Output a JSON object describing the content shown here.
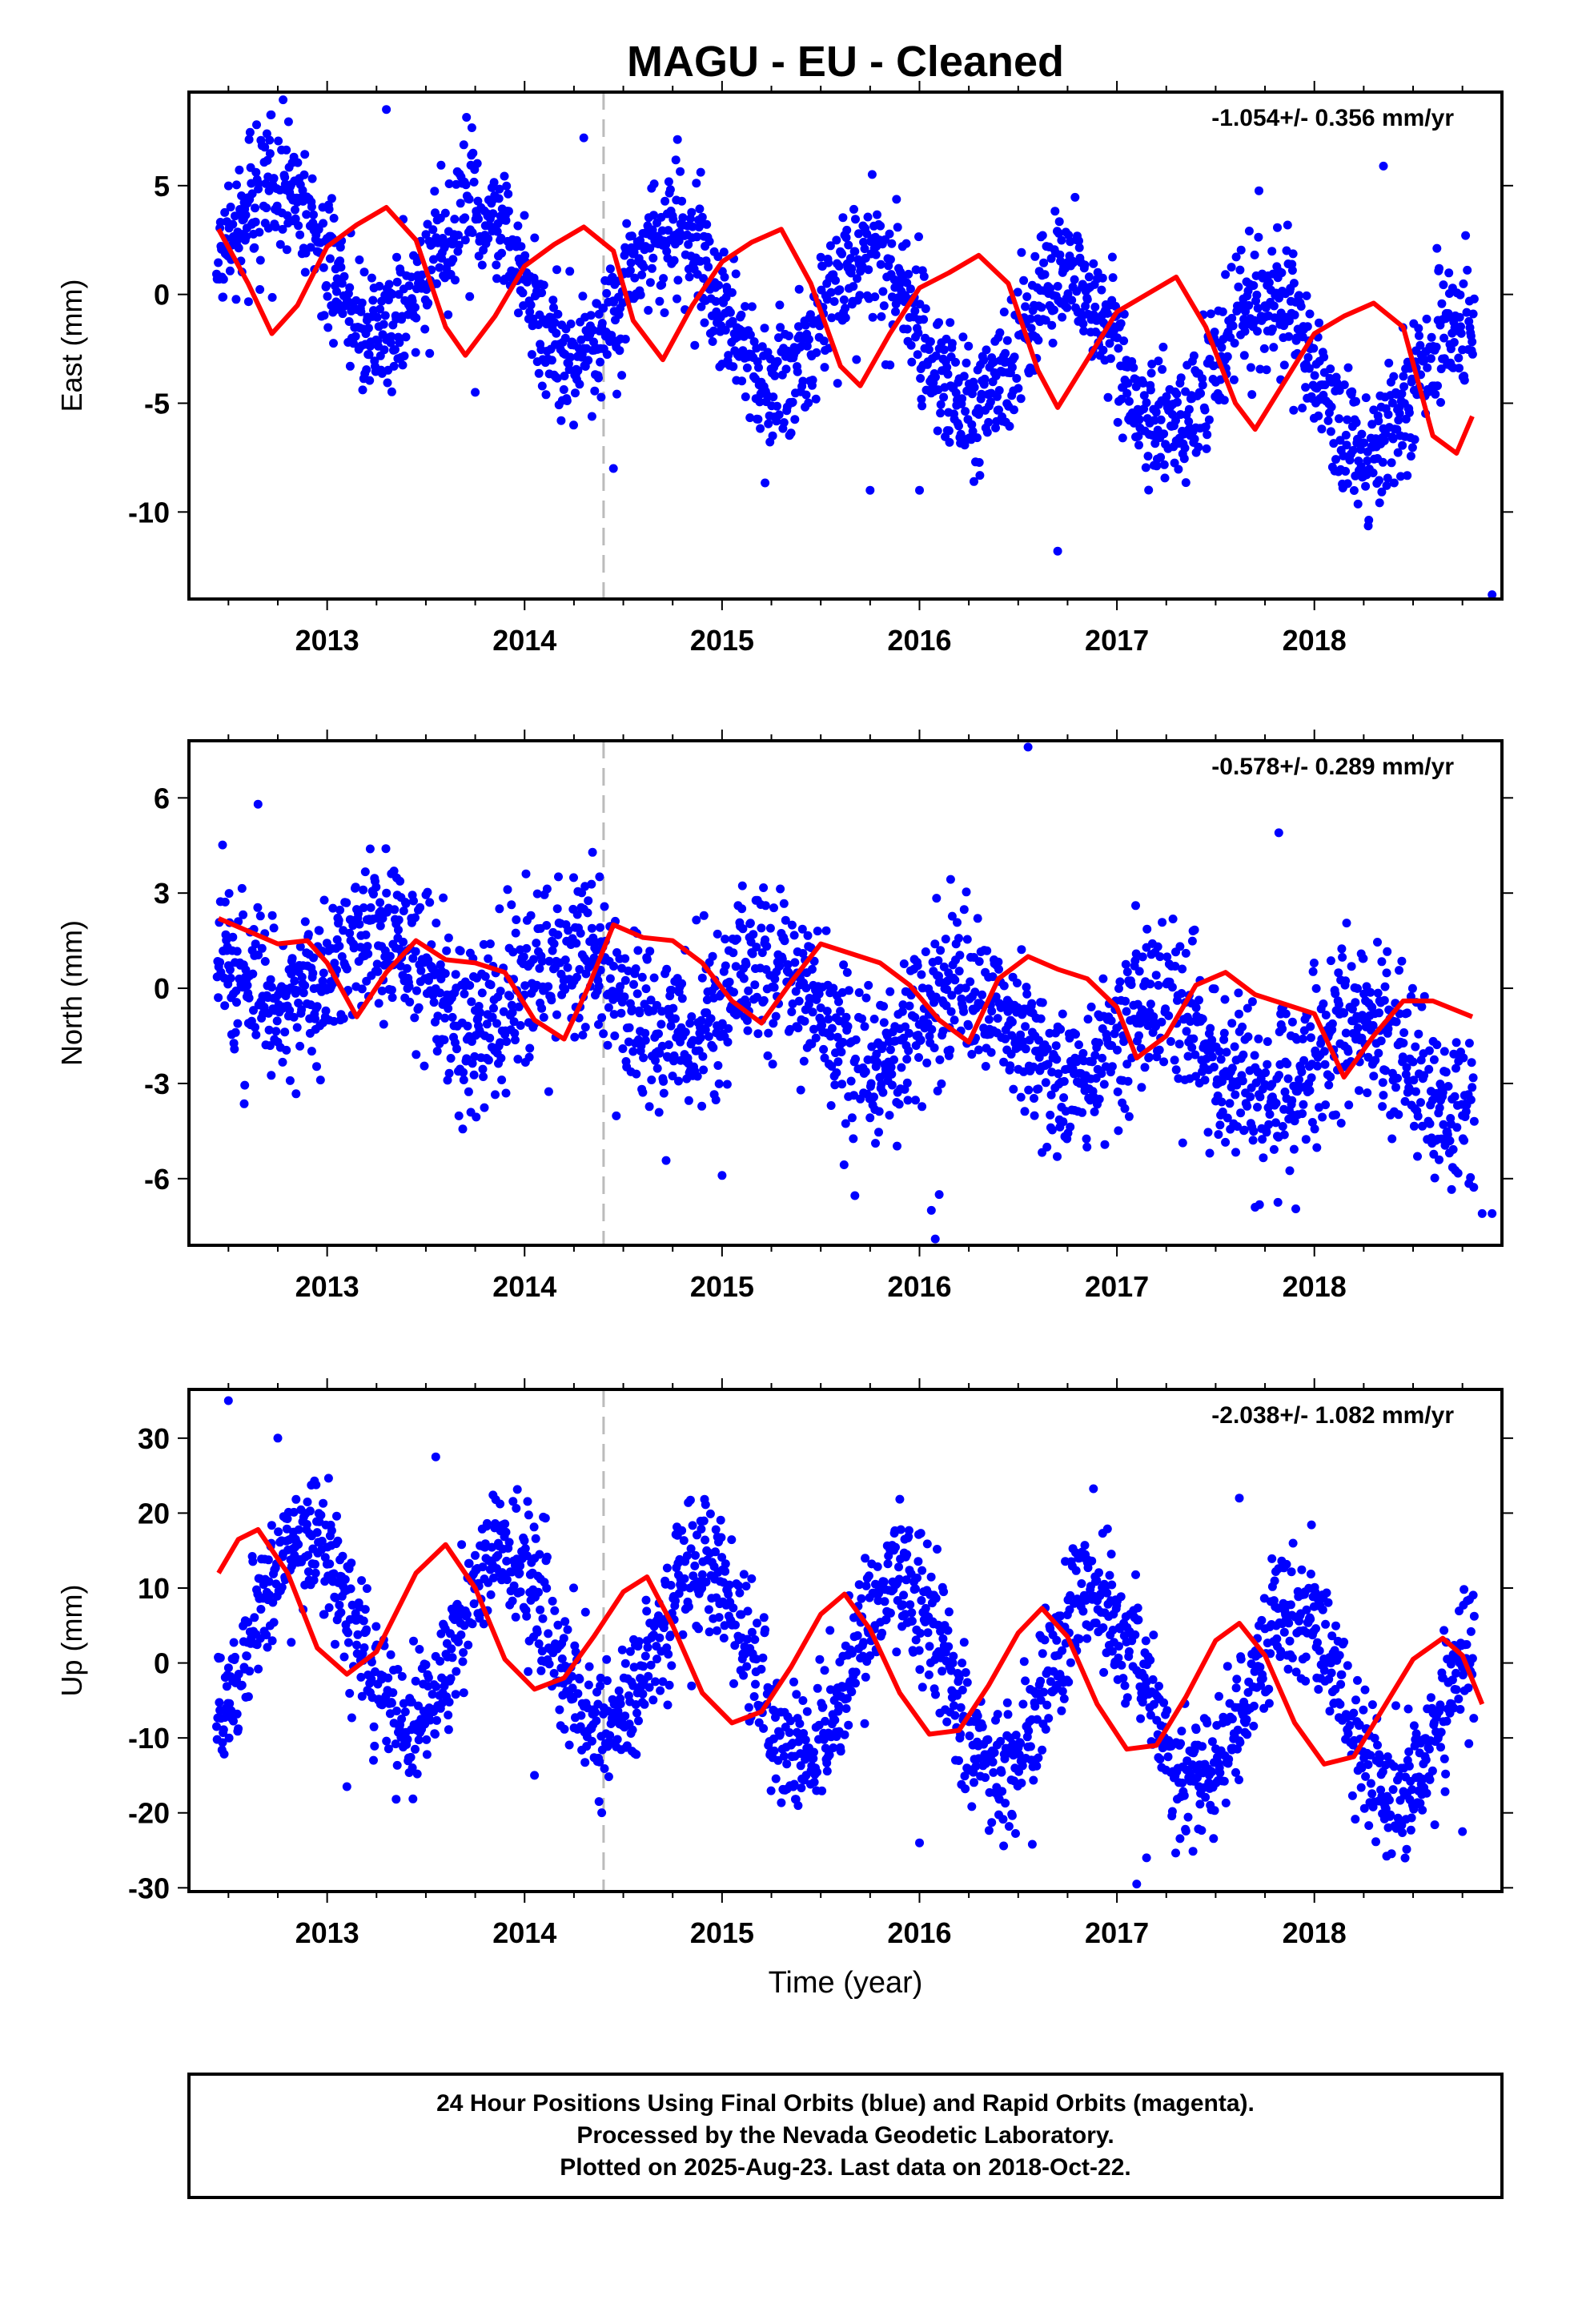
{
  "colors": {
    "points": "#0000ff",
    "fit": "#ff0000",
    "divider": "#bbbbbb",
    "frame": "#000000"
  },
  "chart_data": {
    "title": "MAGU  - EU - Cleaned",
    "xlabel": "Time (year)",
    "x_ticks": [
      "2013",
      "2014",
      "2015",
      "2016",
      "2017",
      "2018"
    ],
    "xlim": [
      2012.3,
      2018.95
    ],
    "divider_x": 2014.4,
    "panels": [
      {
        "type": "scatter",
        "ylabel": "East (mm)",
        "rate": "-1.054+/- 0.356 mm/yr",
        "ylim": [
          -14,
          9.3
        ],
        "yticks": [
          "5",
          "0",
          "-5",
          "-10"
        ],
        "ytick_values": [
          5,
          0,
          -5,
          -10
        ],
        "fit_line": {
          "x": [
            2012.45,
            2012.6,
            2012.72,
            2012.85,
            2013.0,
            2013.15,
            2013.3,
            2013.45,
            2013.6,
            2013.7,
            2013.85,
            2014.0,
            2014.15,
            2014.3,
            2014.45,
            2014.55,
            2014.7,
            2014.85,
            2015.0,
            2015.15,
            2015.3,
            2015.45,
            2015.6,
            2015.7,
            2015.85,
            2016.0,
            2016.15,
            2016.3,
            2016.45,
            2016.6,
            2016.7,
            2016.85,
            2017.0,
            2017.15,
            2017.3,
            2017.45,
            2017.6,
            2017.7,
            2017.85,
            2018.0,
            2018.15,
            2018.3,
            2018.45,
            2018.6,
            2018.72,
            2018.8
          ],
          "y": [
            3.0,
            0.5,
            -1.8,
            -0.5,
            2.2,
            3.2,
            4.0,
            2.5,
            -1.5,
            -2.8,
            -1.0,
            1.3,
            2.3,
            3.1,
            2.0,
            -1.2,
            -3.0,
            -0.5,
            1.5,
            2.4,
            3.0,
            0.5,
            -3.3,
            -4.2,
            -1.8,
            0.3,
            1.0,
            1.8,
            0.5,
            -3.5,
            -5.2,
            -3.0,
            -0.8,
            0.0,
            0.8,
            -1.5,
            -5.0,
            -6.2,
            -4.0,
            -1.8,
            -1.0,
            -0.4,
            -1.5,
            -6.5,
            -7.3,
            -5.6
          ]
        },
        "wave": {
          "base": 2.2,
          "trend": -1.05,
          "amp": 3.3,
          "phase": 0.5,
          "noise": 1.5
        },
        "outliers": {
          "x": [
            2013.3,
            2013.75,
            2014.3,
            2014.45,
            2015.0,
            2015.75,
            2016.0,
            2016.7,
            2018.35,
            2018.9
          ],
          "y": [
            8.5,
            -4.5,
            7.2,
            -8.0,
            -3.2,
            -9.0,
            -9.0,
            -11.8,
            5.9,
            -13.8
          ]
        }
      },
      {
        "type": "scatter",
        "ylabel": "North (mm)",
        "rate": "-0.578+/- 0.289 mm/yr",
        "ylim": [
          -8.1,
          7.8
        ],
        "yticks": [
          "6",
          "3",
          "0",
          "-3",
          "-6"
        ],
        "ytick_values": [
          6,
          3,
          0,
          -3,
          -6
        ],
        "fit_line": {
          "x": [
            2012.45,
            2012.6,
            2012.75,
            2012.9,
            2013.0,
            2013.15,
            2013.3,
            2013.45,
            2013.6,
            2013.75,
            2013.9,
            2014.05,
            2014.2,
            2014.32,
            2014.45,
            2014.6,
            2014.75,
            2014.9,
            2015.05,
            2015.2,
            2015.35,
            2015.5,
            2015.65,
            2015.8,
            2015.95,
            2016.1,
            2016.25,
            2016.4,
            2016.55,
            2016.7,
            2016.85,
            2017.0,
            2017.1,
            2017.25,
            2017.4,
            2017.55,
            2017.7,
            2017.85,
            2018.0,
            2018.15,
            2018.3,
            2018.45,
            2018.6,
            2018.8
          ],
          "y": [
            2.2,
            1.8,
            1.4,
            1.5,
            0.8,
            -0.9,
            0.5,
            1.5,
            0.9,
            0.8,
            0.5,
            -1.0,
            -1.6,
            0.0,
            2.0,
            1.6,
            1.5,
            0.8,
            -0.4,
            -1.1,
            0.2,
            1.4,
            1.1,
            0.8,
            0.1,
            -1.0,
            -1.7,
            0.3,
            1.0,
            0.6,
            0.3,
            -0.6,
            -2.2,
            -1.5,
            0.1,
            0.5,
            -0.2,
            -0.5,
            -0.8,
            -2.8,
            -1.5,
            -0.4,
            -0.4,
            -0.9
          ]
        },
        "wave": {
          "base": 1.0,
          "trend": -0.58,
          "amp": 1.3,
          "phase": 0.0,
          "noise": 1.3
        },
        "outliers": {
          "x": [
            2016.08,
            2016.06,
            2016.1,
            2016.55,
            2017.7,
            2018.85,
            2018.9,
            2015.0,
            2017.82,
            2012.65
          ],
          "y": [
            -7.9,
            -7.0,
            -6.5,
            7.6,
            -6.9,
            -7.1,
            -7.1,
            -5.9,
            4.9,
            5.8
          ]
        }
      },
      {
        "type": "scatter",
        "ylabel": "Up (mm)",
        "rate": "-2.038+/- 1.082 mm/yr",
        "ylim": [
          -30.5,
          36.5
        ],
        "yticks": [
          "30",
          "20",
          "10",
          "0",
          "-10",
          "-20",
          "-30"
        ],
        "ytick_values": [
          30,
          20,
          10,
          0,
          -10,
          -20,
          -30
        ],
        "fit_line": {
          "x": [
            2012.45,
            2012.55,
            2012.65,
            2012.8,
            2012.95,
            2013.1,
            2013.25,
            2013.45,
            2013.6,
            2013.75,
            2013.9,
            2014.05,
            2014.2,
            2014.35,
            2014.5,
            2014.62,
            2014.75,
            2014.9,
            2015.05,
            2015.2,
            2015.35,
            2015.5,
            2015.62,
            2015.75,
            2015.9,
            2016.05,
            2016.2,
            2016.35,
            2016.5,
            2016.62,
            2016.75,
            2016.9,
            2017.05,
            2017.2,
            2017.35,
            2017.5,
            2017.62,
            2017.75,
            2017.9,
            2018.05,
            2018.2,
            2018.35,
            2018.5,
            2018.65,
            2018.75,
            2018.85
          ],
          "y": [
            12.0,
            16.5,
            17.8,
            12.0,
            2.0,
            -1.5,
            1.5,
            12.0,
            15.8,
            10.0,
            0.5,
            -3.5,
            -2.0,
            3.5,
            9.5,
            11.5,
            5.0,
            -4.0,
            -8.0,
            -6.5,
            -0.5,
            6.5,
            9.2,
            4.5,
            -4.0,
            -9.5,
            -9.0,
            -3.0,
            4.0,
            7.3,
            3.5,
            -5.5,
            -11.5,
            -11.0,
            -4.5,
            3.0,
            5.3,
            1.0,
            -8.0,
            -13.5,
            -12.5,
            -6.0,
            0.5,
            3.3,
            1.0,
            -5.5
          ]
        },
        "wave": {
          "base": 6.0,
          "trend": -2.0,
          "amp": 12.0,
          "phase": 1.35,
          "noise": 4.5
        },
        "outliers": {
          "x": [
            2012.5,
            2012.75,
            2013.55,
            2013.1,
            2017.1,
            2017.15,
            2018.75,
            2016.0,
            2014.05,
            2017.62
          ],
          "y": [
            35.0,
            30.0,
            27.5,
            -16.5,
            -29.5,
            -26.0,
            -22.5,
            -24.0,
            -15.0,
            22.0
          ]
        }
      }
    ]
  },
  "caption": {
    "line1": "24 Hour Positions Using Final Orbits (blue) and Rapid Orbits (magenta).",
    "line2": "Processed by the Nevada Geodetic Laboratory.",
    "line3": "Plotted on 2025-Aug-23. Last data on 2018-Oct-22."
  }
}
